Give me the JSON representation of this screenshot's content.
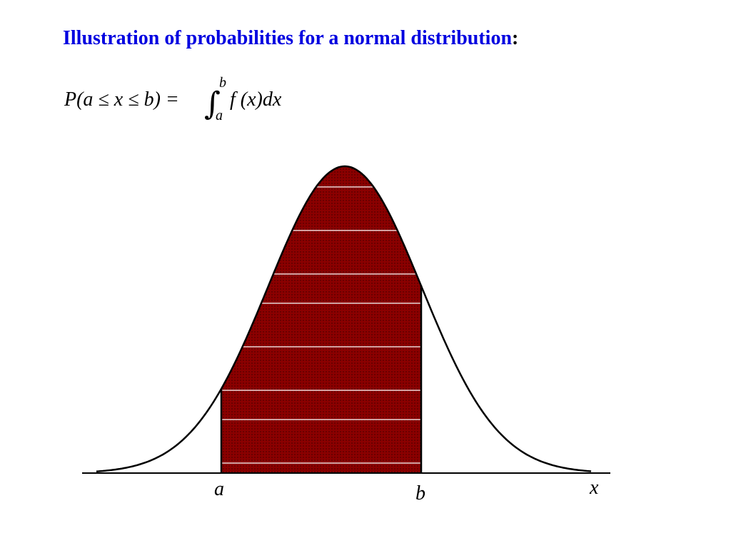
{
  "title": "Illustration of probabilities for a normal distribution",
  "title_suffix": ":",
  "formula": {
    "lhs": "P(a ≤ x ≤ b) =",
    "integral_sign": "∫",
    "upper_limit": "b",
    "lower_limit": "a",
    "integrand": "f (x)dx"
  },
  "labels": [
    "a",
    "b",
    "x"
  ]
}
